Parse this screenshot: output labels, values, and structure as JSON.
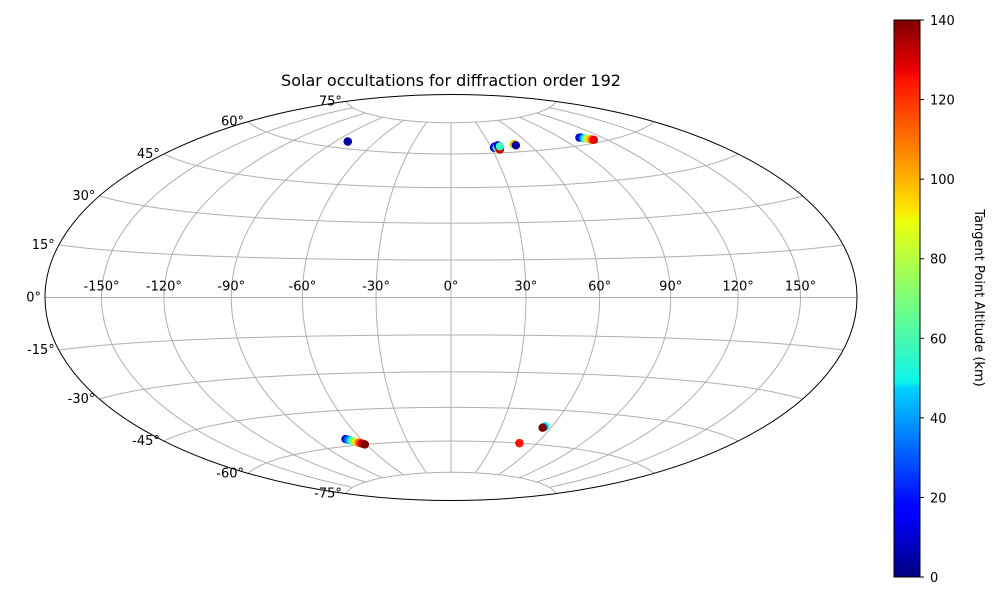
{
  "chart_data": {
    "type": "scatter",
    "projection": "hammer",
    "title": "Solar occultations for diffraction order 192",
    "xlabel": "",
    "ylabel": "",
    "grid": true,
    "lon_ticks": [
      -150,
      -120,
      -90,
      -60,
      -30,
      0,
      30,
      60,
      90,
      120,
      150
    ],
    "lon_tick_labels": [
      "-150°",
      "-120°",
      "-90°",
      "-60°",
      "-30°",
      "0°",
      "30°",
      "60°",
      "90°",
      "120°",
      "150°"
    ],
    "lat_ticks": [
      75,
      60,
      45,
      30,
      15,
      0,
      -15,
      -30,
      -45,
      -60,
      -75
    ],
    "lat_tick_labels": [
      "75°",
      "60°",
      "45°",
      "30°",
      "15°",
      "0°",
      "-15°",
      "-30°",
      "-45°",
      "-60°",
      "-75°"
    ],
    "colormap": "jet",
    "colorbar": {
      "label": "Tangent Point Altitude (km)",
      "range": [
        0,
        140
      ],
      "ticks": [
        0,
        20,
        40,
        60,
        80,
        100,
        120,
        140
      ],
      "tick_labels": [
        "0",
        "20",
        "40",
        "60",
        "80",
        "100",
        "120",
        "140"
      ],
      "location": "right"
    },
    "series": [
      {
        "points": [
          {
            "lon": -81,
            "lat": 63,
            "alt": 0
          },
          {
            "lon": -81,
            "lat": 63,
            "alt": 5
          },
          {
            "lon": 32,
            "lat": 62.5,
            "alt": 5
          },
          {
            "lon": 33,
            "lat": 63,
            "alt": 15
          },
          {
            "lon": 34,
            "lat": 62.5,
            "alt": 60
          },
          {
            "lon": 35,
            "lat": 62,
            "alt": 110
          },
          {
            "lon": 35.5,
            "lat": 61.5,
            "alt": 130
          },
          {
            "lon": 36,
            "lat": 63.5,
            "alt": 10
          },
          {
            "lon": 37,
            "lat": 63,
            "alt": 60
          },
          {
            "lon": 48,
            "lat": 63.5,
            "alt": 80
          },
          {
            "lon": 49,
            "lat": 63.5,
            "alt": 100
          },
          {
            "lon": 49.5,
            "lat": 63,
            "alt": 5
          },
          {
            "lon": 104,
            "lat": 63,
            "alt": 5
          },
          {
            "lon": 105,
            "lat": 63,
            "alt": 20
          },
          {
            "lon": 106,
            "lat": 62.5,
            "alt": 40
          },
          {
            "lon": 107,
            "lat": 62.3,
            "alt": 60
          },
          {
            "lon": 108,
            "lat": 62,
            "alt": 80
          },
          {
            "lon": 109,
            "lat": 61.7,
            "alt": 95
          },
          {
            "lon": 110,
            "lat": 61.4,
            "alt": 110
          },
          {
            "lon": 111,
            "lat": 61.2,
            "alt": 125
          },
          {
            "lon": -70,
            "lat": -57,
            "alt": 10
          },
          {
            "lon": -69,
            "lat": -57.3,
            "alt": 30
          },
          {
            "lon": -68,
            "lat": -57.7,
            "alt": 45
          },
          {
            "lon": -67,
            "lat": -58,
            "alt": 60
          },
          {
            "lon": -66,
            "lat": -58.3,
            "alt": 75
          },
          {
            "lon": -65,
            "lat": -58.6,
            "alt": 90
          },
          {
            "lon": -64,
            "lat": -59,
            "alt": 105
          },
          {
            "lon": -63,
            "lat": -59.3,
            "alt": 120
          },
          {
            "lon": -62,
            "lat": -59.6,
            "alt": 132
          },
          {
            "lon": -61,
            "lat": -60,
            "alt": 140
          },
          {
            "lon": 56,
            "lat": -52,
            "alt": 60
          },
          {
            "lon": 55.5,
            "lat": -52.4,
            "alt": 40
          },
          {
            "lon": 55,
            "lat": -52.7,
            "alt": 140
          },
          {
            "lon": 48,
            "lat": -60,
            "alt": 140
          },
          {
            "lon": 48,
            "lat": -60,
            "alt": 120
          }
        ]
      }
    ]
  }
}
